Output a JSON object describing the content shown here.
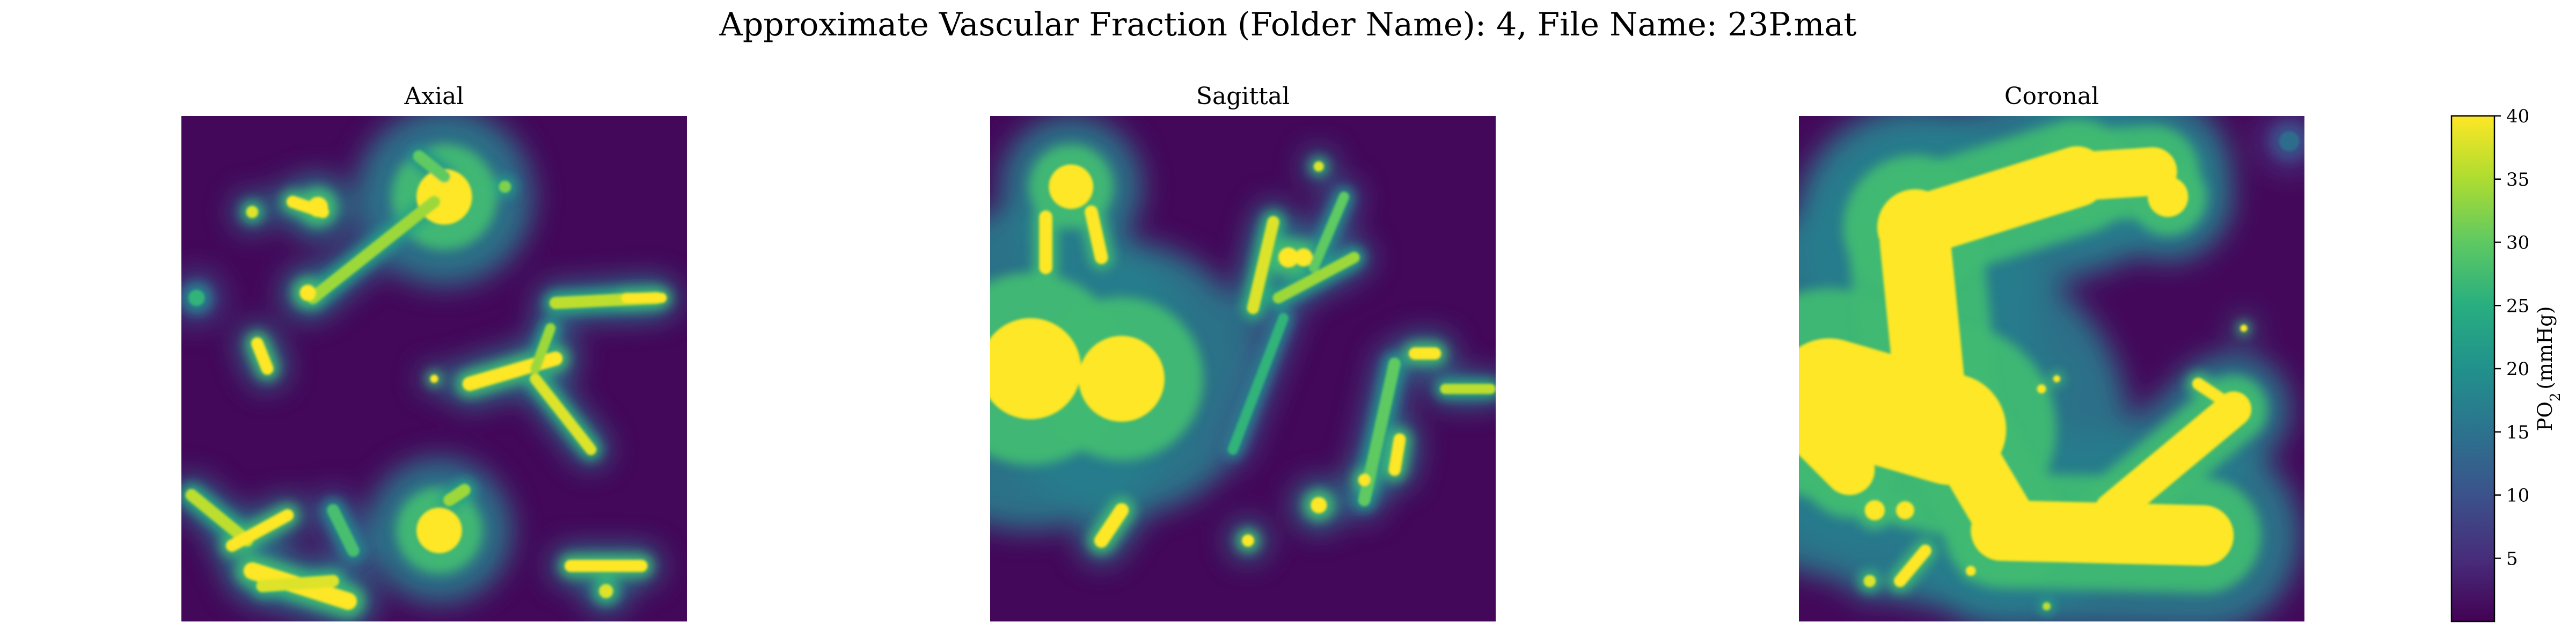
{
  "chart_data": [
    {
      "type": "heatmap",
      "suptitle": "Approximate Vascular Fraction (Folder Name): 4, File Name: 23P.mat",
      "panels": [
        {
          "title": "Axial",
          "axes_visible": false,
          "vessels": [
            {
              "kind": "blob",
              "x": 0.52,
              "y": 0.16,
              "r": 0.055,
              "v": 40
            },
            {
              "kind": "blob",
              "x": 0.27,
              "y": 0.18,
              "r": 0.02,
              "v": 40
            },
            {
              "kind": "blob",
              "x": 0.14,
              "y": 0.19,
              "r": 0.012,
              "v": 38
            },
            {
              "kind": "seg",
              "x1": 0.22,
              "y1": 0.17,
              "x2": 0.28,
              "y2": 0.19,
              "w": 0.012,
              "v": 40
            },
            {
              "kind": "seg",
              "x1": 0.26,
              "y1": 0.36,
              "x2": 0.5,
              "y2": 0.17,
              "w": 0.012,
              "v": 34
            },
            {
              "kind": "blob",
              "x": 0.25,
              "y": 0.35,
              "r": 0.016,
              "v": 40
            },
            {
              "kind": "seg",
              "x1": 0.47,
              "y1": 0.08,
              "x2": 0.52,
              "y2": 0.12,
              "w": 0.012,
              "v": 30
            },
            {
              "kind": "blob",
              "x": 0.64,
              "y": 0.14,
              "r": 0.012,
              "v": 32
            },
            {
              "kind": "seg",
              "x1": 0.15,
              "y1": 0.45,
              "x2": 0.17,
              "y2": 0.5,
              "w": 0.012,
              "v": 40
            },
            {
              "kind": "blob",
              "x": 0.03,
              "y": 0.36,
              "r": 0.016,
              "v": 26
            },
            {
              "kind": "seg",
              "x1": 0.74,
              "y1": 0.37,
              "x2": 0.94,
              "y2": 0.36,
              "w": 0.012,
              "v": 36
            },
            {
              "kind": "seg",
              "x1": 0.88,
              "y1": 0.36,
              "x2": 0.95,
              "y2": 0.36,
              "w": 0.01,
              "v": 40
            },
            {
              "kind": "seg",
              "x1": 0.57,
              "y1": 0.53,
              "x2": 0.74,
              "y2": 0.48,
              "w": 0.014,
              "v": 40
            },
            {
              "kind": "blob",
              "x": 0.5,
              "y": 0.52,
              "r": 0.008,
              "v": 40
            },
            {
              "kind": "seg",
              "x1": 0.7,
              "y1": 0.52,
              "x2": 0.81,
              "y2": 0.66,
              "w": 0.011,
              "v": 38
            },
            {
              "kind": "seg",
              "x1": 0.7,
              "y1": 0.5,
              "x2": 0.73,
              "y2": 0.42,
              "w": 0.01,
              "v": 34
            },
            {
              "kind": "blob",
              "x": 0.51,
              "y": 0.82,
              "r": 0.045,
              "v": 40
            },
            {
              "kind": "seg",
              "x1": 0.53,
              "y1": 0.76,
              "x2": 0.56,
              "y2": 0.74,
              "w": 0.012,
              "v": 34
            },
            {
              "kind": "seg",
              "x1": 0.02,
              "y1": 0.75,
              "x2": 0.13,
              "y2": 0.84,
              "w": 0.012,
              "v": 36
            },
            {
              "kind": "seg",
              "x1": 0.1,
              "y1": 0.85,
              "x2": 0.21,
              "y2": 0.79,
              "w": 0.012,
              "v": 40
            },
            {
              "kind": "seg",
              "x1": 0.14,
              "y1": 0.9,
              "x2": 0.33,
              "y2": 0.96,
              "w": 0.017,
              "v": 40
            },
            {
              "kind": "seg",
              "x1": 0.16,
              "y1": 0.93,
              "x2": 0.3,
              "y2": 0.92,
              "w": 0.012,
              "v": 38
            },
            {
              "kind": "seg",
              "x1": 0.3,
              "y1": 0.78,
              "x2": 0.34,
              "y2": 0.86,
              "w": 0.012,
              "v": 28
            },
            {
              "kind": "seg",
              "x1": 0.77,
              "y1": 0.89,
              "x2": 0.91,
              "y2": 0.89,
              "w": 0.012,
              "v": 40
            },
            {
              "kind": "blob",
              "x": 0.84,
              "y": 0.94,
              "r": 0.014,
              "v": 38
            }
          ]
        },
        {
          "title": "Sagittal",
          "axes_visible": false,
          "vessels": [
            {
              "kind": "blob",
              "x": 0.08,
              "y": 0.5,
              "r": 0.1,
              "v": 40
            },
            {
              "kind": "blob",
              "x": 0.26,
              "y": 0.52,
              "r": 0.085,
              "v": 40
            },
            {
              "kind": "blob",
              "x": 0.16,
              "y": 0.14,
              "r": 0.044,
              "v": 40
            },
            {
              "kind": "seg",
              "x1": 0.11,
              "y1": 0.2,
              "x2": 0.11,
              "y2": 0.3,
              "w": 0.013,
              "v": 40
            },
            {
              "kind": "seg",
              "x1": 0.2,
              "y1": 0.19,
              "x2": 0.22,
              "y2": 0.28,
              "w": 0.013,
              "v": 40
            },
            {
              "kind": "seg",
              "x1": 0.52,
              "y1": 0.38,
              "x2": 0.56,
              "y2": 0.21,
              "w": 0.012,
              "v": 38
            },
            {
              "kind": "blob",
              "x": 0.59,
              "y": 0.28,
              "r": 0.02,
              "v": 40
            },
            {
              "kind": "blob",
              "x": 0.62,
              "y": 0.28,
              "r": 0.018,
              "v": 40
            },
            {
              "kind": "seg",
              "x1": 0.57,
              "y1": 0.36,
              "x2": 0.72,
              "y2": 0.28,
              "w": 0.011,
              "v": 34
            },
            {
              "kind": "seg",
              "x1": 0.64,
              "y1": 0.3,
              "x2": 0.7,
              "y2": 0.16,
              "w": 0.01,
              "v": 30
            },
            {
              "kind": "blob",
              "x": 0.65,
              "y": 0.1,
              "r": 0.01,
              "v": 38
            },
            {
              "kind": "seg",
              "x1": 0.58,
              "y1": 0.4,
              "x2": 0.48,
              "y2": 0.66,
              "w": 0.01,
              "v": 26
            },
            {
              "kind": "seg",
              "x1": 0.84,
              "y1": 0.47,
              "x2": 0.88,
              "y2": 0.47,
              "w": 0.012,
              "v": 40
            },
            {
              "kind": "seg",
              "x1": 0.8,
              "y1": 0.49,
              "x2": 0.74,
              "y2": 0.76,
              "w": 0.012,
              "v": 30
            },
            {
              "kind": "seg",
              "x1": 0.9,
              "y1": 0.54,
              "x2": 0.99,
              "y2": 0.54,
              "w": 0.01,
              "v": 36
            },
            {
              "kind": "seg",
              "x1": 0.8,
              "y1": 0.7,
              "x2": 0.81,
              "y2": 0.64,
              "w": 0.012,
              "v": 40
            },
            {
              "kind": "blob",
              "x": 0.65,
              "y": 0.77,
              "r": 0.016,
              "v": 40
            },
            {
              "kind": "blob",
              "x": 0.74,
              "y": 0.72,
              "r": 0.012,
              "v": 40
            },
            {
              "kind": "seg",
              "x1": 0.22,
              "y1": 0.84,
              "x2": 0.26,
              "y2": 0.78,
              "w": 0.014,
              "v": 40
            },
            {
              "kind": "blob",
              "x": 0.51,
              "y": 0.84,
              "r": 0.012,
              "v": 40
            }
          ]
        },
        {
          "title": "Coronal",
          "axes_visible": false,
          "vessels": [
            {
              "kind": "blob",
              "x": 0.23,
              "y": 0.22,
              "r": 0.075,
              "v": 40
            },
            {
              "kind": "seg",
              "x1": 0.23,
              "y1": 0.22,
              "x2": 0.55,
              "y2": 0.12,
              "w": 0.06,
              "v": 40
            },
            {
              "kind": "seg",
              "x1": 0.55,
              "y1": 0.12,
              "x2": 0.7,
              "y2": 0.11,
              "w": 0.048,
              "v": 40
            },
            {
              "kind": "blob",
              "x": 0.73,
              "y": 0.16,
              "r": 0.04,
              "v": 40
            },
            {
              "kind": "seg",
              "x1": 0.23,
              "y1": 0.25,
              "x2": 0.26,
              "y2": 0.55,
              "w": 0.07,
              "v": 40
            },
            {
              "kind": "seg",
              "x1": 0.06,
              "y1": 0.55,
              "x2": 0.3,
              "y2": 0.62,
              "w": 0.11,
              "v": 40
            },
            {
              "kind": "seg",
              "x1": 0.26,
              "y1": 0.55,
              "x2": 0.42,
              "y2": 0.82,
              "w": 0.06,
              "v": 40
            },
            {
              "kind": "seg",
              "x1": 0.4,
              "y1": 0.82,
              "x2": 0.8,
              "y2": 0.83,
              "w": 0.06,
              "v": 40
            },
            {
              "kind": "seg",
              "x1": 0.62,
              "y1": 0.78,
              "x2": 0.86,
              "y2": 0.58,
              "w": 0.035,
              "v": 40
            },
            {
              "kind": "seg",
              "x1": 0.79,
              "y1": 0.53,
              "x2": 0.88,
              "y2": 0.59,
              "w": 0.012,
              "v": 40
            },
            {
              "kind": "seg",
              "x1": 0.02,
              "y1": 0.62,
              "x2": 0.1,
              "y2": 0.7,
              "w": 0.05,
              "v": 40
            },
            {
              "kind": "blob",
              "x": 0.15,
              "y": 0.78,
              "r": 0.02,
              "v": 40
            },
            {
              "kind": "blob",
              "x": 0.21,
              "y": 0.78,
              "r": 0.018,
              "v": 40
            },
            {
              "kind": "seg",
              "x1": 0.2,
              "y1": 0.92,
              "x2": 0.25,
              "y2": 0.86,
              "w": 0.012,
              "v": 40
            },
            {
              "kind": "blob",
              "x": 0.14,
              "y": 0.92,
              "r": 0.012,
              "v": 38
            },
            {
              "kind": "blob",
              "x": 0.34,
              "y": 0.9,
              "r": 0.01,
              "v": 40
            },
            {
              "kind": "blob",
              "x": 0.48,
              "y": 0.54,
              "r": 0.009,
              "v": 40
            },
            {
              "kind": "blob",
              "x": 0.51,
              "y": 0.52,
              "r": 0.007,
              "v": 40
            },
            {
              "kind": "blob",
              "x": 0.88,
              "y": 0.42,
              "r": 0.007,
              "v": 40
            },
            {
              "kind": "blob",
              "x": 0.49,
              "y": 0.97,
              "r": 0.008,
              "v": 36
            },
            {
              "kind": "blob",
              "x": 0.97,
              "y": 0.05,
              "r": 0.02,
              "v": 14
            }
          ]
        }
      ],
      "colorbar": {
        "label": "PO",
        "label_sub": "2",
        "label_unit": "(mmHg)",
        "colormap": "viridis",
        "vmin": 0,
        "vmax": 40,
        "ticks": [
          5,
          10,
          15,
          20,
          25,
          30,
          35,
          40
        ],
        "tick_labels": [
          "5",
          "10",
          "15",
          "20",
          "25",
          "30",
          "35",
          "40"
        ]
      }
    }
  ],
  "colors": {
    "viridis_low": "#440154",
    "viridis_mid": "#21918c",
    "viridis_high": "#fde725"
  }
}
